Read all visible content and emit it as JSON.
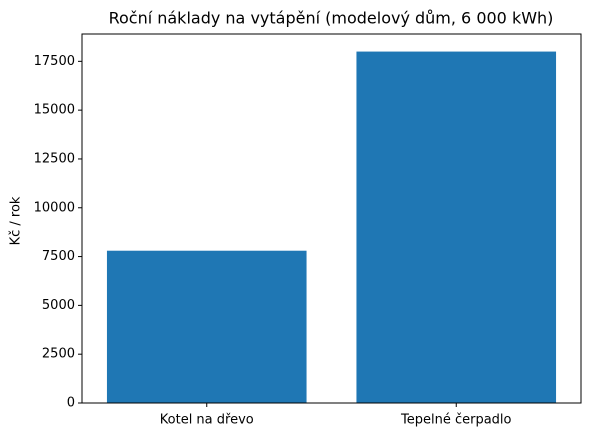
{
  "chart_data": {
    "type": "bar",
    "title": "Roční náklady na vytápění (modelový dům, 6 000 kWh)",
    "y_label": "Kč / rok",
    "categories": [
      "Kotel na dřevo",
      "Tepelné čerpadlo"
    ],
    "values": [
      7800,
      18000
    ],
    "color": "#1f77b4",
    "ylim": [
      0,
      18900
    ],
    "yticks": [
      0,
      2500,
      5000,
      7500,
      10000,
      12500,
      15000,
      17500
    ]
  }
}
